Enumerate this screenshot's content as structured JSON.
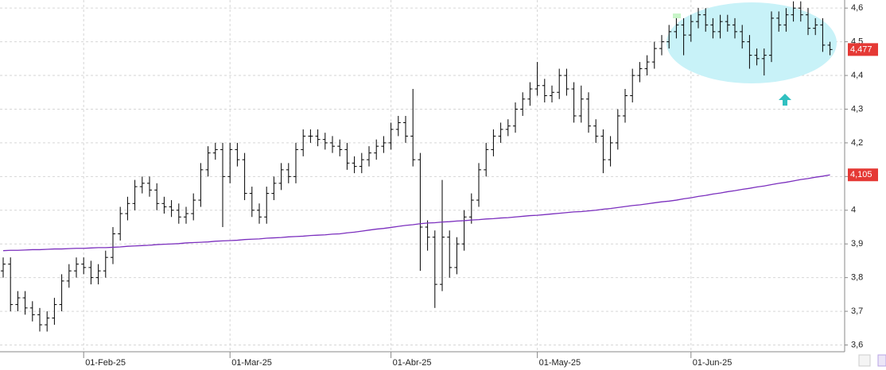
{
  "chart_data": {
    "type": "ohlc",
    "categories": [
      null,
      null,
      null,
      null,
      null,
      null,
      null,
      null,
      null,
      null,
      null,
      "01-Feb-25",
      null,
      null,
      null,
      null,
      null,
      null,
      null,
      null,
      null,
      null,
      null,
      null,
      null,
      null,
      null,
      null,
      null,
      null,
      null,
      "01-Mar-25",
      null,
      null,
      null,
      null,
      null,
      null,
      null,
      null,
      null,
      null,
      null,
      null,
      null,
      null,
      null,
      null,
      null,
      null,
      null,
      null,
      null,
      "01-Abr-25",
      null,
      null,
      null,
      null,
      null,
      null,
      null,
      null,
      null,
      null,
      null,
      null,
      null,
      null,
      null,
      null,
      null,
      null,
      null,
      "01-May-25",
      null,
      null,
      null,
      null,
      null,
      null,
      null,
      null,
      null,
      null,
      null,
      null,
      null,
      null,
      null,
      null,
      null,
      null,
      null,
      null,
      "01-Jun-25",
      null,
      null,
      null,
      null,
      null,
      null,
      null,
      null,
      null,
      null,
      null,
      null,
      null,
      null,
      null,
      null,
      null,
      null,
      null
    ],
    "series": [
      {
        "color": "#000000",
        "last_label": "4,477",
        "label_color": "#e53935",
        "open": [
          3.82,
          3.84,
          3.72,
          3.74,
          3.71,
          3.69,
          3.66,
          3.68,
          3.72,
          3.79,
          3.82,
          3.84,
          3.83,
          3.8,
          3.82,
          3.86,
          3.93,
          3.99,
          4.02,
          4.07,
          4.08,
          4.06,
          4.02,
          4.01,
          4.0,
          3.98,
          3.99,
          4.03,
          4.12,
          4.17,
          4.18,
          4.1,
          4.18,
          4.15,
          4.05,
          4.0,
          3.98,
          4.05,
          4.08,
          4.12,
          4.1,
          4.18,
          4.22,
          4.22,
          4.21,
          4.2,
          4.19,
          4.18,
          4.14,
          4.13,
          4.15,
          4.17,
          4.19,
          4.2,
          4.24,
          4.26,
          4.22,
          4.15,
          3.95,
          3.92,
          3.78,
          3.92,
          3.83,
          3.9,
          3.98,
          4.03,
          4.12,
          4.18,
          4.22,
          4.24,
          4.25,
          4.3,
          4.33,
          4.36,
          4.37,
          4.34,
          4.35,
          4.4,
          4.36,
          4.28,
          4.33,
          4.25,
          4.22,
          4.15,
          4.2,
          4.28,
          4.34,
          4.4,
          4.42,
          4.44,
          4.48,
          4.5,
          4.53,
          4.55,
          4.52,
          4.56,
          4.58,
          4.55,
          4.53,
          4.56,
          4.55,
          4.53,
          4.5,
          4.46,
          4.45,
          4.46,
          4.57,
          4.55,
          4.58,
          4.6,
          4.58,
          4.54,
          4.55,
          4.49
        ],
        "high": [
          3.86,
          3.86,
          3.76,
          3.76,
          3.73,
          3.71,
          3.7,
          3.74,
          3.81,
          3.84,
          3.86,
          3.86,
          3.85,
          3.84,
          3.88,
          3.95,
          4.01,
          4.04,
          4.09,
          4.1,
          4.1,
          4.08,
          4.04,
          4.03,
          4.02,
          4.01,
          4.05,
          4.14,
          4.19,
          4.2,
          4.2,
          4.2,
          4.2,
          4.17,
          4.07,
          4.02,
          4.07,
          4.1,
          4.14,
          4.14,
          4.2,
          4.24,
          4.24,
          4.24,
          4.23,
          4.22,
          4.21,
          4.2,
          4.16,
          4.17,
          4.19,
          4.21,
          4.22,
          4.26,
          4.28,
          4.28,
          4.36,
          4.17,
          3.97,
          3.94,
          4.09,
          3.94,
          3.92,
          4.0,
          4.05,
          4.14,
          4.2,
          4.24,
          4.26,
          4.27,
          4.32,
          4.35,
          4.38,
          4.44,
          4.39,
          4.37,
          4.42,
          4.42,
          4.38,
          4.37,
          4.35,
          4.27,
          4.24,
          4.22,
          4.3,
          4.36,
          4.42,
          4.44,
          4.46,
          4.5,
          4.52,
          4.55,
          4.57,
          4.57,
          4.58,
          4.6,
          4.6,
          4.57,
          4.58,
          4.58,
          4.57,
          4.55,
          4.52,
          4.48,
          4.48,
          4.59,
          4.59,
          4.6,
          4.62,
          4.62,
          4.6,
          4.57,
          4.57,
          4.5
        ],
        "low": [
          3.8,
          3.7,
          3.7,
          3.69,
          3.67,
          3.64,
          3.64,
          3.66,
          3.7,
          3.77,
          3.8,
          3.81,
          3.78,
          3.78,
          3.8,
          3.84,
          3.91,
          3.97,
          4.0,
          4.05,
          4.04,
          4.0,
          3.99,
          3.98,
          3.96,
          3.96,
          3.97,
          4.01,
          4.1,
          4.15,
          3.95,
          4.08,
          4.13,
          4.03,
          3.98,
          3.96,
          3.96,
          4.03,
          4.06,
          4.08,
          4.08,
          4.16,
          4.2,
          4.19,
          4.18,
          4.17,
          4.16,
          4.12,
          4.11,
          4.11,
          4.13,
          4.15,
          4.17,
          4.18,
          4.22,
          4.2,
          4.13,
          3.82,
          3.88,
          3.71,
          3.76,
          3.8,
          3.81,
          3.88,
          3.96,
          4.01,
          4.1,
          4.16,
          4.2,
          4.22,
          4.23,
          4.28,
          4.31,
          4.34,
          4.32,
          4.32,
          4.33,
          4.34,
          4.26,
          4.26,
          4.23,
          4.2,
          4.11,
          4.13,
          4.18,
          4.26,
          4.32,
          4.38,
          4.4,
          4.42,
          4.46,
          4.48,
          4.51,
          4.46,
          4.5,
          4.54,
          4.53,
          4.51,
          4.51,
          4.53,
          4.51,
          4.48,
          4.42,
          4.43,
          4.4,
          4.44,
          4.53,
          4.53,
          4.56,
          4.56,
          4.52,
          4.52,
          4.47,
          4.46
        ],
        "close": [
          3.84,
          3.72,
          3.74,
          3.71,
          3.69,
          3.66,
          3.68,
          3.72,
          3.79,
          3.82,
          3.84,
          3.83,
          3.8,
          3.82,
          3.86,
          3.93,
          3.99,
          4.02,
          4.07,
          4.08,
          4.06,
          4.02,
          4.01,
          4.0,
          3.98,
          3.99,
          4.03,
          4.12,
          4.17,
          4.18,
          4.1,
          4.18,
          4.15,
          4.05,
          4.0,
          3.98,
          4.05,
          4.08,
          4.12,
          4.1,
          4.18,
          4.22,
          4.22,
          4.21,
          4.2,
          4.19,
          4.18,
          4.14,
          4.13,
          4.15,
          4.17,
          4.19,
          4.2,
          4.24,
          4.26,
          4.22,
          4.15,
          3.95,
          3.92,
          3.78,
          3.92,
          3.83,
          3.9,
          3.98,
          4.03,
          4.12,
          4.18,
          4.22,
          4.24,
          4.25,
          4.3,
          4.33,
          4.36,
          4.37,
          4.34,
          4.35,
          4.4,
          4.36,
          4.28,
          4.33,
          4.25,
          4.22,
          4.15,
          4.2,
          4.28,
          4.34,
          4.4,
          4.42,
          4.44,
          4.48,
          4.5,
          4.53,
          4.55,
          4.52,
          4.56,
          4.58,
          4.55,
          4.53,
          4.56,
          4.55,
          4.53,
          4.5,
          4.46,
          4.45,
          4.46,
          4.57,
          4.55,
          4.58,
          4.6,
          4.58,
          4.54,
          4.55,
          4.49,
          4.477
        ]
      },
      {
        "type": "line",
        "color": "#7b2fbe",
        "last_label": "4,105",
        "label_color": "#e53935",
        "values": [
          3.88,
          3.881,
          3.881,
          3.882,
          3.883,
          3.883,
          3.884,
          3.885,
          3.885,
          3.886,
          3.887,
          3.887,
          3.888,
          3.889,
          3.889,
          3.89,
          3.891,
          3.893,
          3.894,
          3.895,
          3.896,
          3.898,
          3.899,
          3.9,
          3.901,
          3.903,
          3.904,
          3.905,
          3.906,
          3.908,
          3.909,
          3.91,
          3.911,
          3.913,
          3.914,
          3.915,
          3.917,
          3.918,
          3.919,
          3.921,
          3.922,
          3.923,
          3.925,
          3.926,
          3.927,
          3.929,
          3.93,
          3.933,
          3.935,
          3.938,
          3.941,
          3.944,
          3.946,
          3.949,
          3.952,
          3.955,
          3.957,
          3.96,
          3.962,
          3.963,
          3.965,
          3.966,
          3.968,
          3.969,
          3.971,
          3.972,
          3.974,
          3.975,
          3.977,
          3.978,
          3.98,
          3.982,
          3.984,
          3.985,
          3.987,
          3.989,
          3.991,
          3.993,
          3.995,
          3.996,
          3.998,
          4.0,
          4.003,
          4.005,
          4.008,
          4.011,
          4.014,
          4.016,
          4.019,
          4.022,
          4.025,
          4.027,
          4.03,
          4.034,
          4.037,
          4.041,
          4.044,
          4.048,
          4.051,
          4.055,
          4.058,
          4.062,
          4.065,
          4.069,
          4.072,
          4.076,
          4.08,
          4.083,
          4.087,
          4.091,
          4.094,
          4.098,
          4.101,
          4.105
        ]
      }
    ],
    "ylim": [
      3.58,
      4.624
    ],
    "yticks": [
      {
        "value": 3.6,
        "label": "3,6"
      },
      {
        "value": 3.7,
        "label": "3,7"
      },
      {
        "value": 3.8,
        "label": "3,8"
      },
      {
        "value": 3.9,
        "label": "3,9"
      },
      4,
      {
        "value": 4.1,
        "label": "4,1"
      },
      {
        "value": 4.2,
        "label": "4,2"
      },
      {
        "value": 4.3,
        "label": "4,3"
      },
      {
        "value": 4.4,
        "label": "4,4"
      },
      {
        "value": 4.5,
        "label": "4,5"
      },
      {
        "value": 4.6,
        "label": "4,6"
      }
    ],
    "grid": true
  }
}
